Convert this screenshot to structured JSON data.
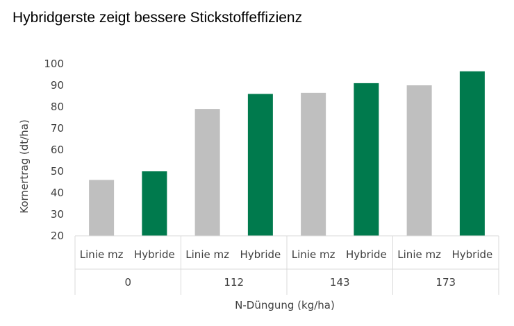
{
  "chart_data": {
    "type": "bar",
    "title": "Hybridgerste zeigt bessere Stickstoffeffizienz",
    "xlabel": "N-Düngung (kg/ha)",
    "ylabel": "Kornertrag (dt/ha)",
    "ylim": [
      20,
      100
    ],
    "yticks": [
      20,
      30,
      40,
      50,
      60,
      70,
      80,
      90,
      100
    ],
    "grid": false,
    "groups": [
      {
        "label": "0",
        "bars": [
          {
            "label": "Linie mz",
            "value": 46,
            "color": "#bfbfbf"
          },
          {
            "label": "Hybride",
            "value": 50,
            "color": "#007a4d"
          }
        ]
      },
      {
        "label": "112",
        "bars": [
          {
            "label": "Linie mz",
            "value": 79,
            "color": "#bfbfbf"
          },
          {
            "label": "Hybride",
            "value": 86,
            "color": "#007a4d"
          }
        ]
      },
      {
        "label": "143",
        "bars": [
          {
            "label": "Linie mz",
            "value": 86.5,
            "color": "#bfbfbf"
          },
          {
            "label": "Hybride",
            "value": 91,
            "color": "#007a4d"
          }
        ]
      },
      {
        "label": "173",
        "bars": [
          {
            "label": "Linie mz",
            "value": 90,
            "color": "#bfbfbf"
          },
          {
            "label": "Hybride",
            "value": 96.5,
            "color": "#007a4d"
          }
        ]
      }
    ]
  }
}
